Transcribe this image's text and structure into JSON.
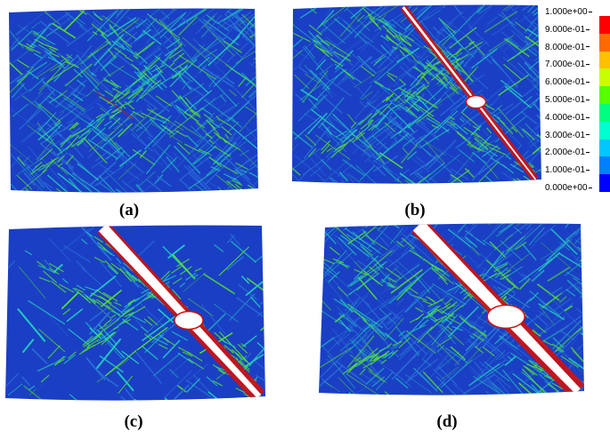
{
  "panels": [
    {
      "id": "a",
      "caption": "(a)",
      "crack": 0
    },
    {
      "id": "b",
      "caption": "(b)",
      "crack": 1
    },
    {
      "id": "c",
      "caption": "(c)",
      "crack": 2
    },
    {
      "id": "d",
      "caption": "(d)",
      "crack": 3
    }
  ],
  "legend": {
    "ticks": [
      "1.000e+00",
      "9.000e-01",
      "8.000e-01",
      "7.000e-01",
      "6.000e-01",
      "5.000e-01",
      "4.000e-01",
      "3.000e-01",
      "2.000e-01",
      "1.000e-01",
      "0.000e+00"
    ],
    "colors": [
      "#ff0000",
      "#ff6a00",
      "#ffc000",
      "#c8ff00",
      "#55ff00",
      "#00ff80",
      "#00ffd0",
      "#00c8ff",
      "#0080ff",
      "#0000ff"
    ]
  },
  "colors": {
    "background_field": "#1a3fc4",
    "damage_low": "#2a6fd8",
    "damage_mid": "#22c8c0",
    "damage_high": "#58e030",
    "crack_edge": "#d01010",
    "crack_void": "#ffffff"
  }
}
